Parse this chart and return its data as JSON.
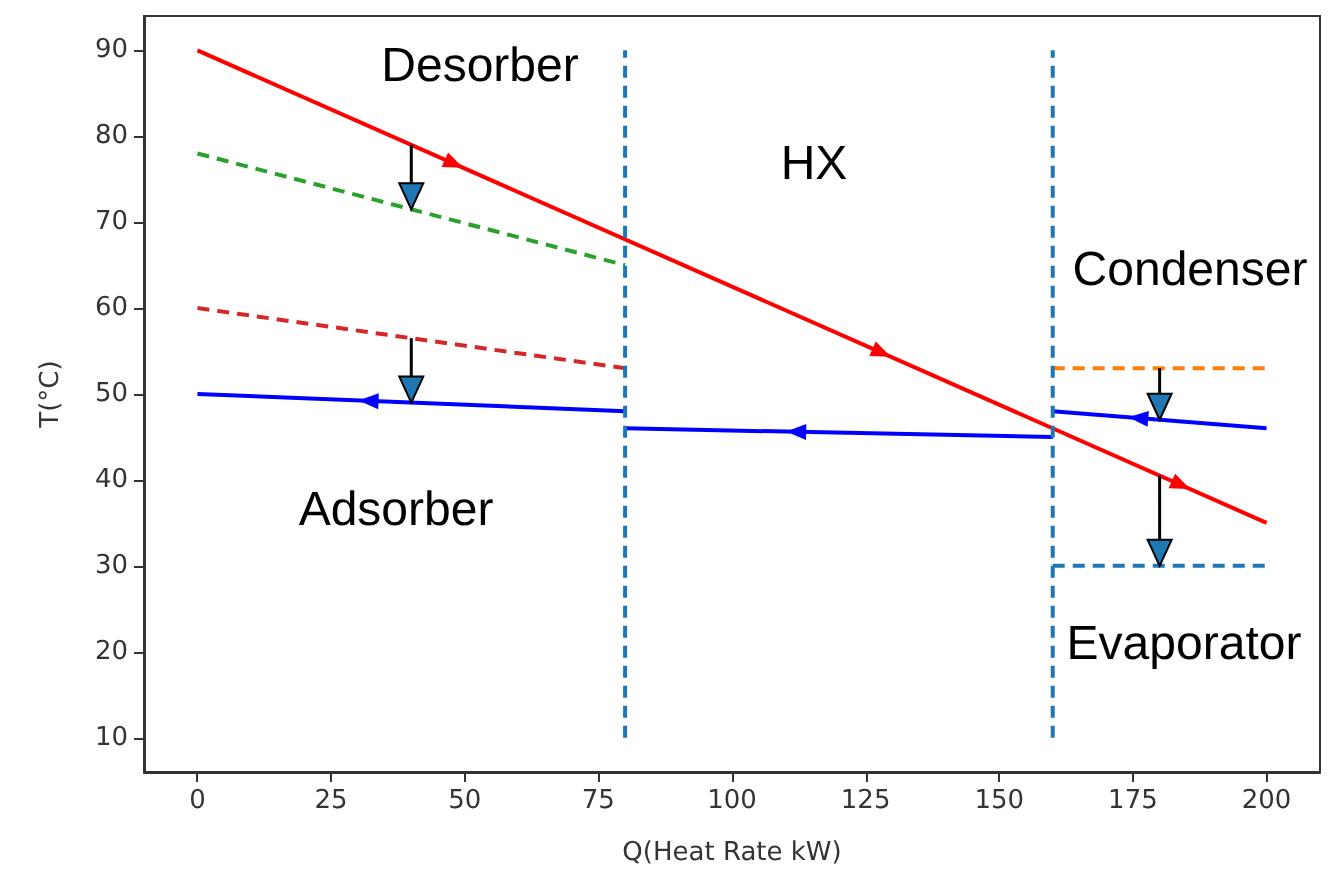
{
  "chart_data": {
    "type": "line",
    "xlabel": "Q(Heat Rate kW)",
    "ylabel": "T(°C)",
    "xlim": [
      -10,
      210
    ],
    "ylim": [
      6,
      94
    ],
    "xticks": [
      0,
      25,
      50,
      75,
      100,
      125,
      150,
      175,
      200
    ],
    "yticks": [
      10,
      20,
      30,
      40,
      50,
      60,
      70,
      80,
      90
    ],
    "grid": false,
    "marker": "none",
    "series": [
      {
        "color": "#ff0000",
        "x": [
          0,
          200
        ],
        "values": [
          90,
          35
        ],
        "line_style": "solid"
      },
      {
        "color": "#2ca02c",
        "x": [
          0,
          80
        ],
        "values": [
          78,
          65
        ],
        "line_style": "dashed"
      },
      {
        "color": "#d62728",
        "x": [
          0,
          80
        ],
        "values": [
          60,
          53
        ],
        "line_style": "dashed"
      },
      {
        "color": "#0000ff",
        "x": [
          80,
          0
        ],
        "values": [
          48,
          50
        ],
        "line_style": "solid"
      },
      {
        "color": "#0000ff",
        "x": [
          160,
          80
        ],
        "values": [
          45,
          46
        ],
        "line_style": "solid"
      },
      {
        "color": "#0000ff",
        "x": [
          200,
          160
        ],
        "values": [
          46,
          48
        ],
        "line_style": "solid"
      },
      {
        "color": "#ff7f0e",
        "x": [
          160,
          200
        ],
        "values": [
          53,
          53
        ],
        "line_style": "dashed"
      },
      {
        "color": "#1f77b4",
        "x": [
          160,
          200
        ],
        "values": [
          30,
          30
        ],
        "line_style": "dashed"
      },
      {
        "color": "#1f77b4",
        "x": [
          80,
          80
        ],
        "values": [
          10,
          90
        ],
        "line_style": "dashed"
      },
      {
        "color": "#1f77b4",
        "x": [
          160,
          160
        ],
        "values": [
          10,
          90
        ],
        "line_style": "dashed"
      }
    ],
    "annotations": [
      "Desorber",
      "HX",
      "Condenser",
      "Adsorber",
      "Evaporator"
    ]
  }
}
